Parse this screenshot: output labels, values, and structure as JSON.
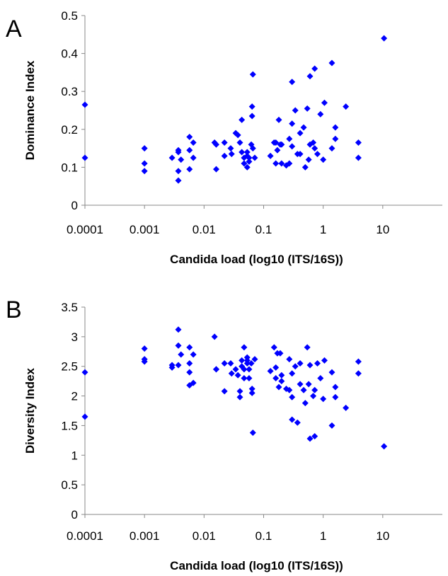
{
  "marker_color": "#0000ff",
  "chart_data": [
    {
      "type": "scatter",
      "panel_label": "A",
      "xlabel": "Candida load (log10 (ITS/16S))",
      "ylabel": "Dominance Index",
      "x_scale": "log",
      "xlim": [
        0.0001,
        100
      ],
      "ylim": [
        0,
        0.5
      ],
      "x_ticks": [
        0.0001,
        0.001,
        0.01,
        0.1,
        1,
        10
      ],
      "x_tick_labels": [
        "0.0001",
        "0.001",
        "0.01",
        "0.1",
        "1",
        "10"
      ],
      "y_ticks": [
        0,
        0.1,
        0.2,
        0.3,
        0.4,
        0.5
      ],
      "y_tick_labels": [
        "0",
        "0.1",
        "0.2",
        "0.3",
        "0.4",
        "0.5"
      ],
      "grid": false,
      "legend": "none",
      "series": [
        {
          "points": [
            [
              0.0001,
              0.265
            ],
            [
              0.0001,
              0.125
            ],
            [
              0.001,
              0.15
            ],
            [
              0.001,
              0.11
            ],
            [
              0.001,
              0.09
            ],
            [
              0.0029,
              0.125
            ],
            [
              0.0037,
              0.14
            ],
            [
              0.0037,
              0.145
            ],
            [
              0.0037,
              0.09
            ],
            [
              0.0037,
              0.065
            ],
            [
              0.0041,
              0.12
            ],
            [
              0.0057,
              0.18
            ],
            [
              0.0057,
              0.145
            ],
            [
              0.0057,
              0.095
            ],
            [
              0.0066,
              0.165
            ],
            [
              0.0066,
              0.125
            ],
            [
              0.015,
              0.165
            ],
            [
              0.016,
              0.16
            ],
            [
              0.016,
              0.095
            ],
            [
              0.022,
              0.165
            ],
            [
              0.022,
              0.13
            ],
            [
              0.028,
              0.15
            ],
            [
              0.029,
              0.135
            ],
            [
              0.034,
              0.19
            ],
            [
              0.037,
              0.185
            ],
            [
              0.04,
              0.165
            ],
            [
              0.043,
              0.225
            ],
            [
              0.043,
              0.14
            ],
            [
              0.047,
              0.125
            ],
            [
              0.047,
              0.11
            ],
            [
              0.053,
              0.14
            ],
            [
              0.053,
              0.13
            ],
            [
              0.053,
              0.1
            ],
            [
              0.057,
              0.115
            ],
            [
              0.057,
              0.125
            ],
            [
              0.062,
              0.16
            ],
            [
              0.064,
              0.235
            ],
            [
              0.064,
              0.26
            ],
            [
              0.066,
              0.345
            ],
            [
              0.066,
              0.15
            ],
            [
              0.071,
              0.125
            ],
            [
              0.13,
              0.13
            ],
            [
              0.15,
              0.165
            ],
            [
              0.16,
              0.165
            ],
            [
              0.16,
              0.11
            ],
            [
              0.17,
              0.145
            ],
            [
              0.18,
              0.225
            ],
            [
              0.19,
              0.16
            ],
            [
              0.2,
              0.16
            ],
            [
              0.2,
              0.11
            ],
            [
              0.24,
              0.105
            ],
            [
              0.27,
              0.175
            ],
            [
              0.27,
              0.11
            ],
            [
              0.3,
              0.325
            ],
            [
              0.3,
              0.215
            ],
            [
              0.3,
              0.155
            ],
            [
              0.34,
              0.25
            ],
            [
              0.37,
              0.135
            ],
            [
              0.41,
              0.19
            ],
            [
              0.41,
              0.135
            ],
            [
              0.47,
              0.205
            ],
            [
              0.5,
              0.1
            ],
            [
              0.54,
              0.255
            ],
            [
              0.57,
              0.12
            ],
            [
              0.6,
              0.34
            ],
            [
              0.6,
              0.16
            ],
            [
              0.68,
              0.165
            ],
            [
              0.72,
              0.36
            ],
            [
              0.72,
              0.15
            ],
            [
              0.8,
              0.135
            ],
            [
              0.9,
              0.24
            ],
            [
              1.0,
              0.12
            ],
            [
              1.05,
              0.27
            ],
            [
              1.4,
              0.375
            ],
            [
              1.4,
              0.15
            ],
            [
              1.6,
              0.205
            ],
            [
              1.6,
              0.175
            ],
            [
              2.4,
              0.26
            ],
            [
              3.9,
              0.165
            ],
            [
              3.9,
              0.125
            ],
            [
              10.5,
              0.44
            ]
          ]
        }
      ]
    },
    {
      "type": "scatter",
      "panel_label": "B",
      "xlabel": "Candida load (log10 (ITS/16S))",
      "ylabel": "Diversity Index",
      "x_scale": "log",
      "xlim": [
        0.0001,
        100
      ],
      "ylim": [
        0,
        3.5
      ],
      "x_ticks": [
        0.0001,
        0.001,
        0.01,
        0.1,
        1,
        10
      ],
      "x_tick_labels": [
        "0.0001",
        "0.001",
        "0.01",
        "0.1",
        "1",
        "10"
      ],
      "y_ticks": [
        0,
        0.5,
        1,
        1.5,
        2,
        2.5,
        3,
        3.5
      ],
      "y_tick_labels": [
        "0",
        "0.5",
        "1",
        "1.5",
        "2",
        "2.5",
        "3",
        "3.5"
      ],
      "grid": false,
      "legend": "none",
      "series": [
        {
          "points": [
            [
              0.0001,
              2.4
            ],
            [
              0.0001,
              1.65
            ],
            [
              0.001,
              2.8
            ],
            [
              0.001,
              2.62
            ],
            [
              0.001,
              2.58
            ],
            [
              0.0029,
              2.52
            ],
            [
              0.0029,
              2.48
            ],
            [
              0.0037,
              3.12
            ],
            [
              0.0037,
              2.85
            ],
            [
              0.0037,
              2.52
            ],
            [
              0.0041,
              2.7
            ],
            [
              0.0057,
              2.82
            ],
            [
              0.0057,
              2.55
            ],
            [
              0.0057,
              2.4
            ],
            [
              0.0057,
              2.18
            ],
            [
              0.0066,
              2.7
            ],
            [
              0.0066,
              2.22
            ],
            [
              0.015,
              3.0
            ],
            [
              0.016,
              2.45
            ],
            [
              0.016,
              2.45
            ],
            [
              0.022,
              2.55
            ],
            [
              0.022,
              2.08
            ],
            [
              0.028,
              2.55
            ],
            [
              0.029,
              2.38
            ],
            [
              0.034,
              2.45
            ],
            [
              0.037,
              2.35
            ],
            [
              0.04,
              2.08
            ],
            [
              0.04,
              1.98
            ],
            [
              0.043,
              2.6
            ],
            [
              0.043,
              2.5
            ],
            [
              0.047,
              2.82
            ],
            [
              0.047,
              2.45
            ],
            [
              0.047,
              2.3
            ],
            [
              0.053,
              2.65
            ],
            [
              0.053,
              2.6
            ],
            [
              0.053,
              2.55
            ],
            [
              0.057,
              2.45
            ],
            [
              0.057,
              2.3
            ],
            [
              0.062,
              2.55
            ],
            [
              0.064,
              2.12
            ],
            [
              0.064,
              2.05
            ],
            [
              0.066,
              1.38
            ],
            [
              0.071,
              2.62
            ],
            [
              0.13,
              2.42
            ],
            [
              0.15,
              2.82
            ],
            [
              0.16,
              2.48
            ],
            [
              0.16,
              2.3
            ],
            [
              0.17,
              2.72
            ],
            [
              0.18,
              2.15
            ],
            [
              0.19,
              2.72
            ],
            [
              0.2,
              2.35
            ],
            [
              0.2,
              2.25
            ],
            [
              0.24,
              2.12
            ],
            [
              0.27,
              2.62
            ],
            [
              0.27,
              2.1
            ],
            [
              0.3,
              2.38
            ],
            [
              0.3,
              1.6
            ],
            [
              0.3,
              1.98
            ],
            [
              0.34,
              2.5
            ],
            [
              0.37,
              1.55
            ],
            [
              0.41,
              2.55
            ],
            [
              0.41,
              2.2
            ],
            [
              0.47,
              2.1
            ],
            [
              0.5,
              1.88
            ],
            [
              0.54,
              2.82
            ],
            [
              0.57,
              2.2
            ],
            [
              0.6,
              1.28
            ],
            [
              0.6,
              2.52
            ],
            [
              0.68,
              2.0
            ],
            [
              0.72,
              1.32
            ],
            [
              0.72,
              2.1
            ],
            [
              0.8,
              2.55
            ],
            [
              0.9,
              2.3
            ],
            [
              1.0,
              1.95
            ],
            [
              1.05,
              2.6
            ],
            [
              1.4,
              2.4
            ],
            [
              1.4,
              1.5
            ],
            [
              1.6,
              2.15
            ],
            [
              1.6,
              1.98
            ],
            [
              2.4,
              1.8
            ],
            [
              3.9,
              2.58
            ],
            [
              3.9,
              2.38
            ],
            [
              10.5,
              1.15
            ]
          ]
        }
      ]
    }
  ]
}
